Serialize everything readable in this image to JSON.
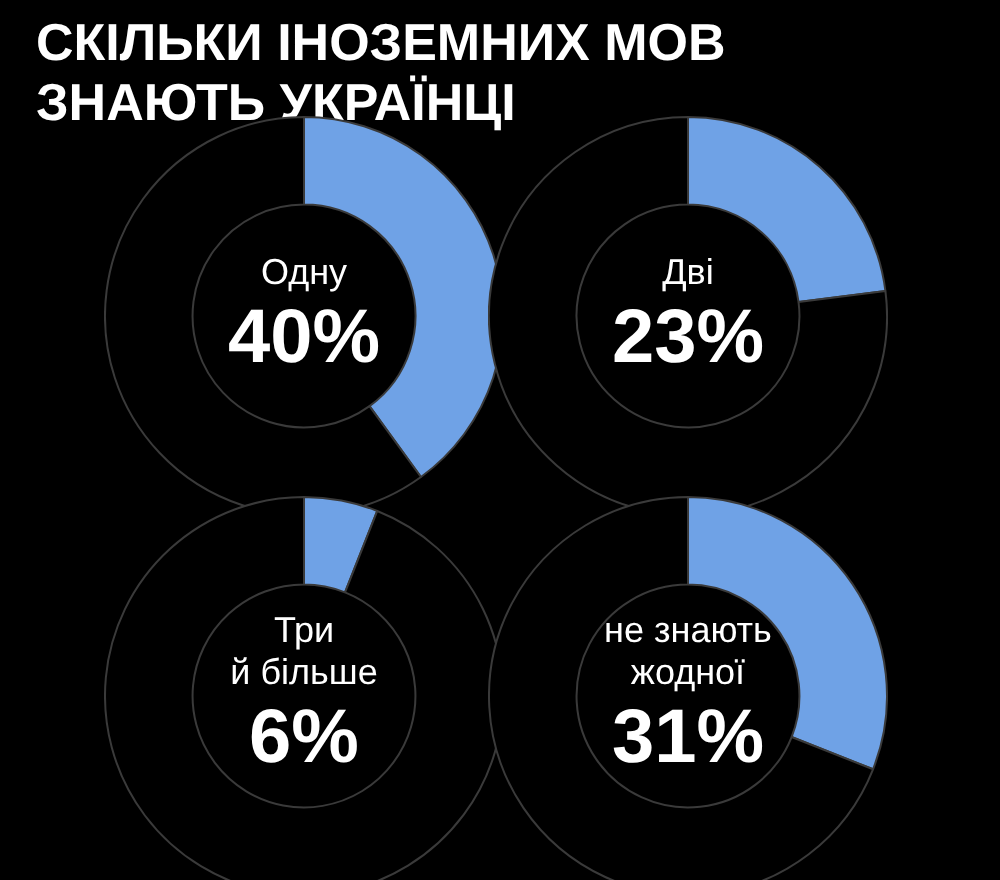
{
  "chart_data": [
    {
      "type": "donut",
      "title": "СКІЛЬКИ ІНОЗЕМНИХ МОВ\nЗНАЮТЬ УКРАЇНЦІ",
      "categories": [
        "Одну",
        null
      ],
      "values": [
        40,
        60
      ],
      "colors": [
        "#6fa2e6",
        "#000000"
      ],
      "value_labels": [
        "40%",
        null
      ]
    },
    {
      "type": "donut",
      "categories": [
        "Дві",
        null
      ],
      "values": [
        23,
        77
      ],
      "colors": [
        "#6fa2e6",
        "#000000"
      ],
      "value_labels": [
        "23%",
        null
      ]
    },
    {
      "type": "donut",
      "categories": [
        "Три\nй більше",
        null
      ],
      "values": [
        6,
        94
      ],
      "colors": [
        "#6fa2e6",
        "#000000"
      ],
      "value_labels": [
        "6%",
        null
      ]
    },
    {
      "type": "donut",
      "categories": [
        "не знають\nжодної",
        null
      ],
      "values": [
        31,
        69
      ],
      "colors": [
        "#6fa2e6",
        "#000000"
      ],
      "value_labels": [
        "31%",
        null
      ]
    }
  ]
}
